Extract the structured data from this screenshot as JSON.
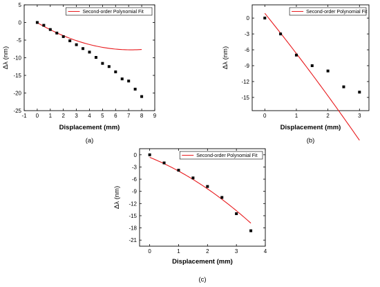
{
  "chart_data": [
    {
      "panel_label": "(a)",
      "type": "scatter",
      "xlabel": "Displacement (mm)",
      "ylabel": "Δλ (nm)",
      "xlim": [
        -1,
        9
      ],
      "ylim": [
        -25,
        5
      ],
      "xticks": [
        "-1",
        "0",
        "1",
        "2",
        "3",
        "4",
        "5",
        "6",
        "7",
        "8",
        "9"
      ],
      "yticks": [
        "5",
        "0",
        "-5",
        "-10",
        "-15",
        "-20",
        "-25"
      ],
      "legend": {
        "label": "Second-order Polynomial Fit",
        "position": "top-right"
      },
      "grid": false,
      "series": [
        {
          "kind": "points",
          "x": [
            0,
            0.5,
            1,
            1.5,
            2,
            2.5,
            3,
            3.5,
            4,
            4.5,
            5,
            5.5,
            6,
            6.5,
            7,
            7.5,
            8
          ],
          "y": [
            0,
            -0.8,
            -2,
            -3,
            -4,
            -5.2,
            -6.3,
            -7.4,
            -8.4,
            -9.9,
            -11.6,
            -12.5,
            -14,
            -16,
            -16.6,
            -18.9,
            -21
          ]
        },
        {
          "kind": "fit",
          "name": "Second-order Polynomial Fit",
          "color": "#e8191c",
          "x_range": [
            0,
            8
          ],
          "coefficients": [
            0.15,
            -2.15,
            -0.05
          ]
        }
      ]
    },
    {
      "panel_label": "(b)",
      "type": "scatter",
      "xlabel": "Displacement (mm)",
      "ylabel": "Δλ (nm)",
      "xlim": [
        -0.4,
        3.3
      ],
      "ylim": [
        -17.5,
        2.5
      ],
      "xticks": [
        "0",
        "1",
        "2",
        "3"
      ],
      "yticks": [
        "0",
        "-3",
        "-6",
        "-9",
        "-12",
        "-15"
      ],
      "legend": {
        "label": "Second-order Polynomial Fit",
        "position": "top-right"
      },
      "grid": false,
      "series": [
        {
          "kind": "points",
          "x": [
            0,
            0.5,
            1,
            1.5,
            2,
            2.5,
            3
          ],
          "y": [
            0,
            -3,
            -7,
            -9,
            -10,
            -13,
            -14
          ]
        },
        {
          "kind": "fit",
          "name": "Second-order Polynomial Fit",
          "color": "#e8191c",
          "x_range": [
            0,
            3
          ],
          "coefficients": [
            -0.2,
            -7.4,
            0.9
          ]
        }
      ]
    },
    {
      "panel_label": "(c)",
      "type": "scatter",
      "xlabel": "Displacement (mm)",
      "ylabel": "Δλ (nm)",
      "xlim": [
        -0.35,
        4
      ],
      "ylim": [
        -22.5,
        1.5
      ],
      "xticks": [
        "0",
        "1",
        "2",
        "3",
        "4"
      ],
      "yticks": [
        "0",
        "-3",
        "-6",
        "-9",
        "-12",
        "-15",
        "-18",
        "-21"
      ],
      "legend": {
        "label": "Second-order Polynomial Fit",
        "position": "top-right"
      },
      "grid": false,
      "series": [
        {
          "kind": "points",
          "x": [
            0,
            0.5,
            1,
            1.5,
            2,
            2.5,
            3,
            3.5
          ],
          "y": [
            0,
            -2,
            -3.8,
            -5.7,
            -7.8,
            -10.5,
            -14.5,
            -18.7
          ]
        },
        {
          "kind": "fit",
          "name": "Second-order Polynomial Fit",
          "color": "#e8191c",
          "x_range": [
            0,
            3.5
          ],
          "coefficients": [
            -0.5,
            -2.88,
            -0.63
          ]
        }
      ]
    }
  ]
}
